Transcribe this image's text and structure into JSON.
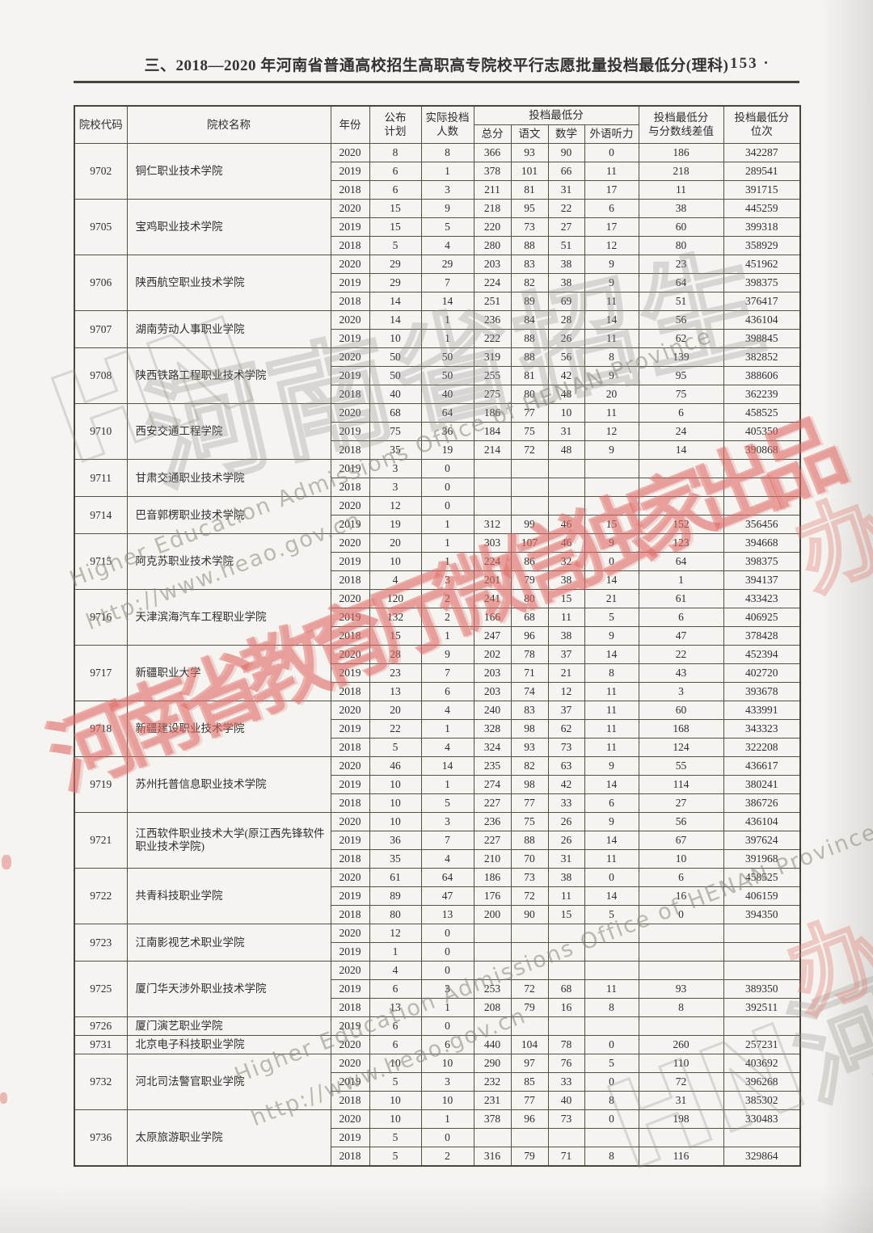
{
  "page": {
    "title": "三、2018—2020 年河南省普通高校招生高职高专院校平行志愿批量投档最低分(理科)",
    "page_number": "· 153 ·"
  },
  "table": {
    "header": {
      "code": "院校代码",
      "name": "院校名称",
      "year": "年份",
      "plan": [
        "公布",
        "计划"
      ],
      "actual": [
        "实际投档",
        "人数"
      ],
      "min_group": "投档最低分",
      "subs": [
        "总分",
        "语文",
        "数学",
        "外语听力"
      ],
      "diff": [
        "投档最低分",
        "与分数线差值"
      ],
      "rank": [
        "投档最低分",
        "位次"
      ]
    },
    "schools": [
      {
        "code": "9702",
        "name": "铜仁职业技术学院",
        "rows": [
          [
            "2020",
            "8",
            "8",
            "366",
            "93",
            "90",
            "0",
            "186",
            "342287"
          ],
          [
            "2019",
            "6",
            "1",
            "378",
            "101",
            "66",
            "11",
            "218",
            "289541"
          ],
          [
            "2018",
            "6",
            "3",
            "211",
            "81",
            "31",
            "17",
            "11",
            "391715"
          ]
        ]
      },
      {
        "code": "9705",
        "name": "宝鸡职业技术学院",
        "rows": [
          [
            "2020",
            "15",
            "9",
            "218",
            "95",
            "22",
            "6",
            "38",
            "445259"
          ],
          [
            "2019",
            "15",
            "5",
            "220",
            "73",
            "27",
            "17",
            "60",
            "399318"
          ],
          [
            "2018",
            "5",
            "4",
            "280",
            "88",
            "51",
            "12",
            "80",
            "358929"
          ]
        ]
      },
      {
        "code": "9706",
        "name": "陕西航空职业技术学院",
        "rows": [
          [
            "2020",
            "29",
            "29",
            "203",
            "83",
            "38",
            "9",
            "23",
            "451962"
          ],
          [
            "2019",
            "29",
            "7",
            "224",
            "82",
            "38",
            "9",
            "64",
            "398375"
          ],
          [
            "2018",
            "14",
            "14",
            "251",
            "89",
            "69",
            "11",
            "51",
            "376417"
          ]
        ]
      },
      {
        "code": "9707",
        "name": "湖南劳动人事职业学院",
        "rows": [
          [
            "2020",
            "14",
            "1",
            "236",
            "84",
            "28",
            "14",
            "56",
            "436104"
          ],
          [
            "2019",
            "10",
            "1",
            "222",
            "88",
            "26",
            "11",
            "62",
            "398845"
          ]
        ]
      },
      {
        "code": "9708",
        "name": "陕西铁路工程职业技术学院",
        "rows": [
          [
            "2020",
            "50",
            "50",
            "319",
            "88",
            "56",
            "8",
            "139",
            "382852"
          ],
          [
            "2019",
            "50",
            "50",
            "255",
            "81",
            "42",
            "9",
            "95",
            "388606"
          ],
          [
            "2018",
            "40",
            "40",
            "275",
            "80",
            "48",
            "20",
            "75",
            "362239"
          ]
        ]
      },
      {
        "code": "9710",
        "name": "西安交通工程学院",
        "rows": [
          [
            "2020",
            "68",
            "64",
            "186",
            "77",
            "10",
            "11",
            "6",
            "458525"
          ],
          [
            "2019",
            "75",
            "36",
            "184",
            "75",
            "31",
            "12",
            "24",
            "405350"
          ],
          [
            "2018",
            "35",
            "19",
            "214",
            "72",
            "48",
            "9",
            "14",
            "390868"
          ]
        ]
      },
      {
        "code": "9711",
        "name": "甘肃交通职业技术学院",
        "rows": [
          [
            "2019",
            "3",
            "0",
            "",
            "",
            "",
            "",
            "",
            ""
          ],
          [
            "2018",
            "3",
            "0",
            "",
            "",
            "",
            "",
            "",
            ""
          ]
        ]
      },
      {
        "code": "9714",
        "name": "巴音郭楞职业技术学院",
        "rows": [
          [
            "2020",
            "12",
            "0",
            "",
            "",
            "",
            "",
            "",
            ""
          ],
          [
            "2019",
            "19",
            "1",
            "312",
            "99",
            "46",
            "15",
            "152",
            "356456"
          ]
        ]
      },
      {
        "code": "9715",
        "name": "阿克苏职业技术学院",
        "rows": [
          [
            "2020",
            "20",
            "1",
            "303",
            "107",
            "46",
            "9",
            "123",
            "394668"
          ],
          [
            "2019",
            "10",
            "1",
            "224",
            "86",
            "32",
            "0",
            "64",
            "398375"
          ],
          [
            "2018",
            "4",
            "3",
            "201",
            "79",
            "38",
            "14",
            "1",
            "394137"
          ]
        ]
      },
      {
        "code": "9716",
        "name": "天津滨海汽车工程职业学院",
        "rows": [
          [
            "2020",
            "120",
            "2",
            "241",
            "80",
            "15",
            "21",
            "61",
            "433423"
          ],
          [
            "2019",
            "132",
            "2",
            "166",
            "68",
            "11",
            "5",
            "6",
            "406925"
          ],
          [
            "2018",
            "15",
            "1",
            "247",
            "96",
            "38",
            "9",
            "47",
            "378428"
          ]
        ]
      },
      {
        "code": "9717",
        "name": "新疆职业大学",
        "rows": [
          [
            "2020",
            "28",
            "9",
            "202",
            "78",
            "37",
            "14",
            "22",
            "452394"
          ],
          [
            "2019",
            "23",
            "7",
            "203",
            "71",
            "21",
            "8",
            "43",
            "402720"
          ],
          [
            "2018",
            "13",
            "6",
            "203",
            "74",
            "12",
            "11",
            "3",
            "393678"
          ]
        ]
      },
      {
        "code": "9718",
        "name": "新疆建设职业技术学院",
        "rows": [
          [
            "2020",
            "20",
            "4",
            "240",
            "83",
            "37",
            "11",
            "60",
            "433991"
          ],
          [
            "2019",
            "22",
            "1",
            "328",
            "98",
            "62",
            "11",
            "168",
            "343323"
          ],
          [
            "2018",
            "5",
            "4",
            "324",
            "93",
            "73",
            "11",
            "124",
            "322208"
          ]
        ]
      },
      {
        "code": "9719",
        "name": "苏州托普信息职业技术学院",
        "rows": [
          [
            "2020",
            "46",
            "14",
            "235",
            "82",
            "63",
            "9",
            "55",
            "436617"
          ],
          [
            "2019",
            "10",
            "1",
            "274",
            "98",
            "42",
            "14",
            "114",
            "380241"
          ],
          [
            "2018",
            "10",
            "5",
            "227",
            "77",
            "33",
            "6",
            "27",
            "386726"
          ]
        ]
      },
      {
        "code": "9721",
        "name": "江西软件职业技术大学(原江西先锋软件职业技术学院)",
        "rows": [
          [
            "2020",
            "10",
            "3",
            "236",
            "75",
            "26",
            "9",
            "56",
            "436104"
          ],
          [
            "2019",
            "36",
            "7",
            "227",
            "88",
            "26",
            "14",
            "67",
            "397624"
          ],
          [
            "2018",
            "35",
            "4",
            "210",
            "70",
            "31",
            "11",
            "10",
            "391968"
          ]
        ]
      },
      {
        "code": "9722",
        "name": "共青科技职业学院",
        "rows": [
          [
            "2020",
            "61",
            "64",
            "186",
            "73",
            "38",
            "0",
            "6",
            "458525"
          ],
          [
            "2019",
            "89",
            "47",
            "176",
            "72",
            "11",
            "14",
            "16",
            "406159"
          ],
          [
            "2018",
            "80",
            "13",
            "200",
            "90",
            "15",
            "5",
            "0",
            "394350"
          ]
        ]
      },
      {
        "code": "9723",
        "name": "江南影视艺术职业学院",
        "rows": [
          [
            "2020",
            "12",
            "0",
            "",
            "",
            "",
            "",
            "",
            ""
          ],
          [
            "2019",
            "1",
            "0",
            "",
            "",
            "",
            "",
            "",
            ""
          ]
        ]
      },
      {
        "code": "9725",
        "name": "厦门华天涉外职业技术学院",
        "rows": [
          [
            "2020",
            "4",
            "0",
            "",
            "",
            "",
            "",
            "",
            ""
          ],
          [
            "2019",
            "6",
            "3",
            "253",
            "72",
            "68",
            "11",
            "93",
            "389350"
          ],
          [
            "2018",
            "13",
            "1",
            "208",
            "79",
            "16",
            "8",
            "8",
            "392511"
          ]
        ]
      },
      {
        "code": "9726",
        "name": "厦门演艺职业学院",
        "rows": [
          [
            "2019",
            "6",
            "0",
            "",
            "",
            "",
            "",
            "",
            ""
          ]
        ]
      },
      {
        "code": "9731",
        "name": "北京电子科技职业学院",
        "rows": [
          [
            "2020",
            "6",
            "6",
            "440",
            "104",
            "78",
            "0",
            "260",
            "257231"
          ]
        ]
      },
      {
        "code": "9732",
        "name": "河北司法警官职业学院",
        "rows": [
          [
            "2020",
            "10",
            "10",
            "290",
            "97",
            "76",
            "5",
            "110",
            "403692"
          ],
          [
            "2019",
            "5",
            "3",
            "232",
            "85",
            "33",
            "0",
            "72",
            "396268"
          ],
          [
            "2018",
            "10",
            "10",
            "231",
            "77",
            "40",
            "8",
            "31",
            "385302"
          ]
        ]
      },
      {
        "code": "9736",
        "name": "太原旅游职业学院",
        "rows": [
          [
            "2020",
            "10",
            "1",
            "378",
            "96",
            "73",
            "0",
            "198",
            "330483"
          ],
          [
            "2019",
            "5",
            "0",
            "",
            "",
            "",
            "",
            "",
            ""
          ],
          [
            "2018",
            "5",
            "2",
            "316",
            "79",
            "71",
            "8",
            "116",
            "329864"
          ]
        ]
      }
    ]
  },
  "watermarks": {
    "red_main": "河南省教育厅微信独家出品",
    "stamp_hn": "HN",
    "stamp_cn_upper": "河南省招生",
    "stamp_cn_lower": "HN河南省",
    "stamp_red_fragment": "办公室",
    "en_line1": "Higher Education Admissions Office of HENAN Province",
    "en_line2": "http://www.heao.gov.cn",
    "red_color": "#e06a64",
    "grey_color": "#96928b"
  }
}
